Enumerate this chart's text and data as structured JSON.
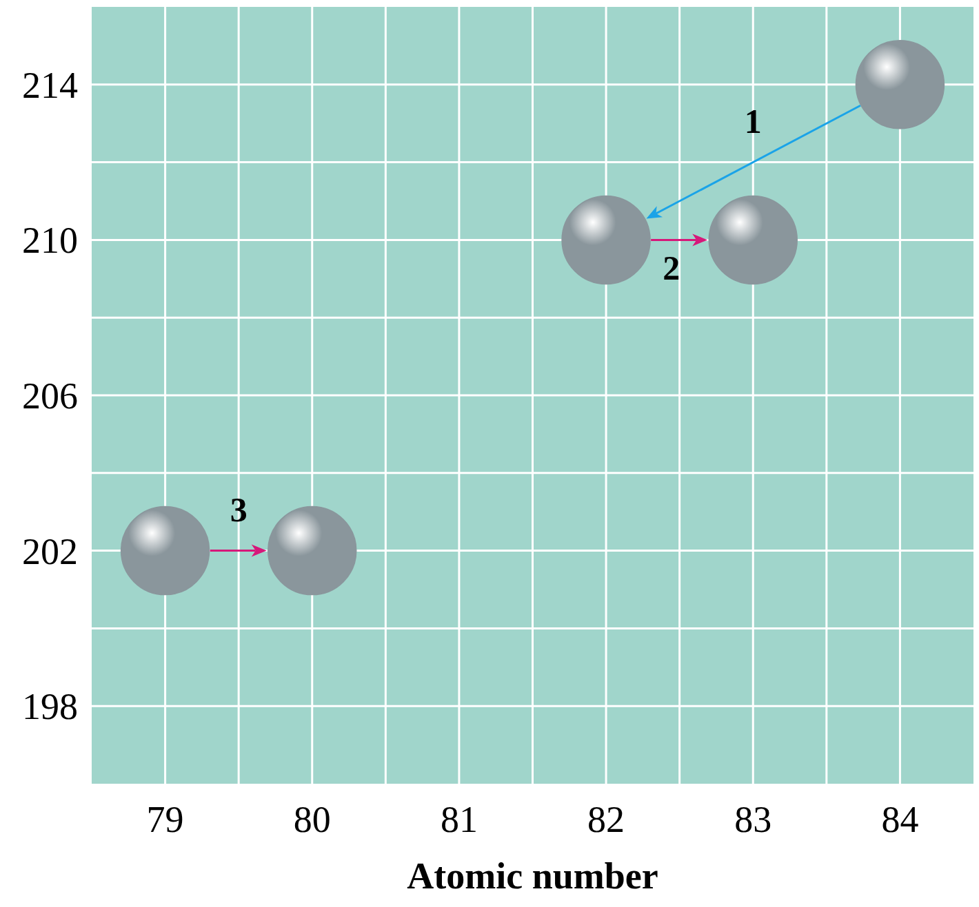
{
  "chart_data": {
    "type": "scatter",
    "xlabel": "Atomic number",
    "xlim": [
      78.5,
      84.5
    ],
    "ylim": [
      196,
      216
    ],
    "xticks": [
      79,
      {
        "value": 79.5,
        "label": null
      },
      80,
      {
        "value": 80.5,
        "label": null
      },
      81,
      {
        "value": 81.5,
        "label": null
      },
      82,
      {
        "value": 82.5,
        "label": null
      },
      83,
      {
        "value": 83.5,
        "label": null
      },
      84
    ],
    "yticks": [
      198,
      {
        "value": 200,
        "label": null
      },
      202,
      {
        "value": 204,
        "label": null
      },
      206,
      {
        "value": 208,
        "label": null
      },
      210,
      {
        "value": 212,
        "label": null
      },
      214
    ],
    "grid": true,
    "marker": "circle",
    "series": [
      {
        "color": "#8a969c",
        "x": [
          84,
          82,
          83,
          79,
          80
        ],
        "values": [
          214,
          210,
          210,
          202,
          202
        ]
      }
    ],
    "annotations": [
      "1",
      {
        "text": "2",
        "x": 83,
        "y": 210
      },
      {
        "text": "3",
        "x": 80,
        "y": 202
      }
    ]
  }
}
